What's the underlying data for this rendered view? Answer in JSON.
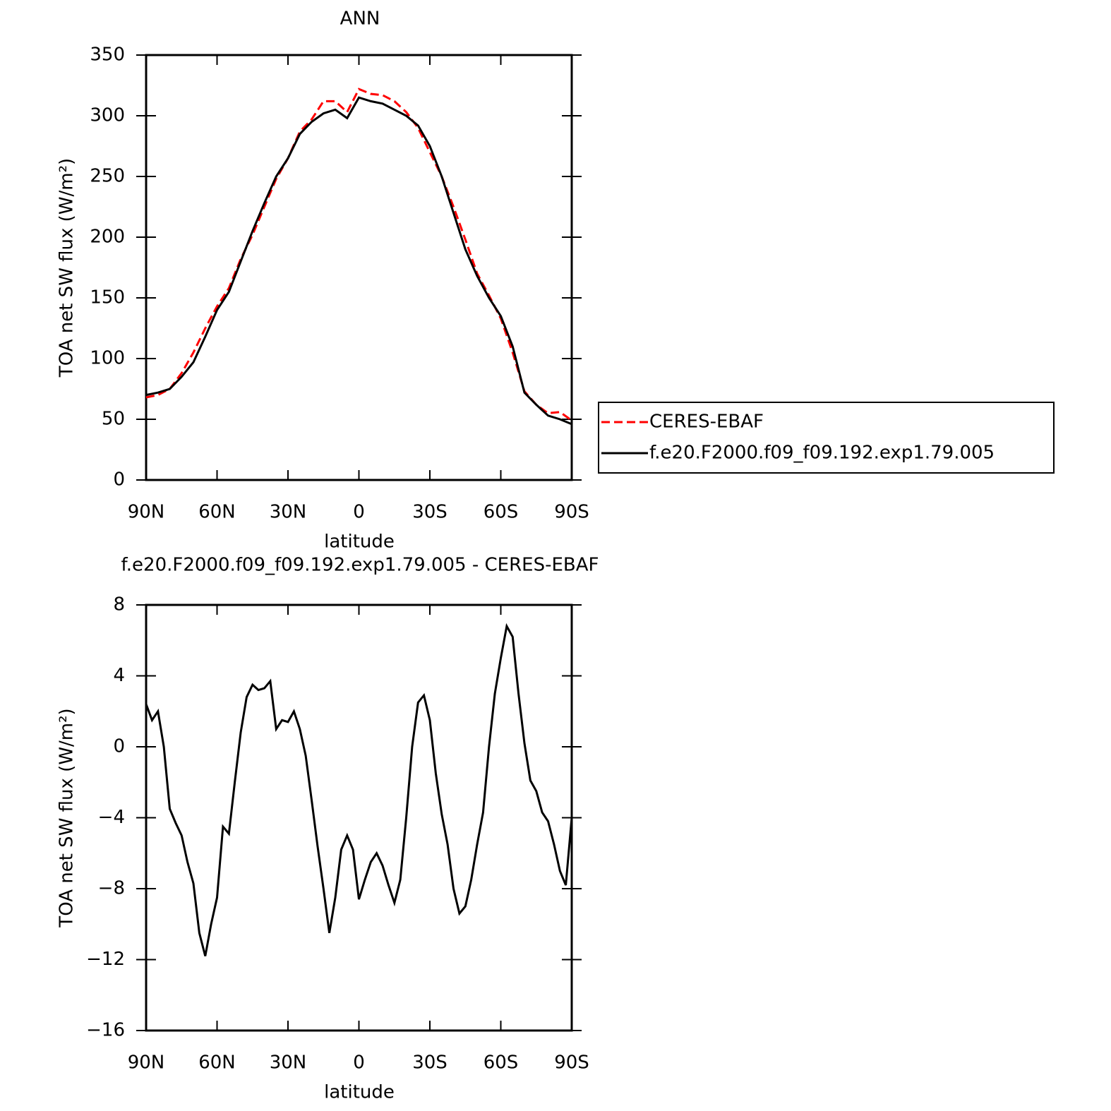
{
  "chart_data": [
    {
      "type": "line",
      "title": "ANN",
      "xlabel": "latitude",
      "ylabel": "TOA net SW flux (W/m²)",
      "x": [
        90,
        85,
        80,
        75,
        70,
        65,
        60,
        55,
        50,
        45,
        40,
        35,
        30,
        25,
        20,
        15,
        10,
        5,
        0,
        -5,
        -10,
        -15,
        -20,
        -25,
        -30,
        -35,
        -40,
        -45,
        -50,
        -55,
        -60,
        -65,
        -70,
        -75,
        -80,
        -85,
        -90
      ],
      "series": [
        {
          "name": "CERES-EBAF",
          "color": "#ff0000",
          "dashed": true,
          "values": [
            68,
            70,
            75,
            88,
            105,
            125,
            143,
            158,
            182,
            202,
            225,
            248,
            265,
            287,
            297,
            312,
            312,
            303,
            322,
            318,
            317,
            312,
            303,
            290,
            270,
            250,
            225,
            198,
            170,
            152,
            133,
            105,
            73,
            62,
            55,
            56,
            49
          ]
        },
        {
          "name": "f.e20.F2000.f09_f09.192.exp1.79.005",
          "color": "#000000",
          "dashed": false,
          "values": [
            70,
            72,
            75,
            85,
            97,
            118,
            140,
            155,
            180,
            205,
            228,
            250,
            265,
            285,
            295,
            302,
            305,
            298,
            315,
            312,
            310,
            305,
            300,
            292,
            275,
            250,
            220,
            190,
            168,
            150,
            135,
            110,
            72,
            62,
            53,
            50,
            46
          ]
        }
      ],
      "xlim": [
        90,
        -90
      ],
      "xticks": [
        {
          "value": 90,
          "label": "90N"
        },
        {
          "value": 60,
          "label": "60N"
        },
        {
          "value": 30,
          "label": "30N"
        },
        0,
        {
          "value": -30,
          "label": "30S"
        },
        {
          "value": -60,
          "label": "60S"
        },
        {
          "value": -90,
          "label": "90S"
        }
      ],
      "ylim": [
        0,
        350
      ],
      "yticks": [
        0,
        50,
        100,
        150,
        200,
        250,
        300,
        350
      ],
      "legend": "right"
    },
    {
      "type": "line",
      "title": "f.e20.F2000.f09_f09.192.exp1.79.005 - CERES-EBAF",
      "xlabel": "latitude",
      "ylabel": "TOA net SW flux (W/m²)",
      "x": [
        90,
        87.5,
        85,
        82.5,
        80,
        77.5,
        75,
        72.5,
        70,
        67.5,
        65,
        62.5,
        60,
        57.5,
        55,
        52.5,
        50,
        47.5,
        45,
        42.5,
        40,
        37.5,
        35,
        32.5,
        30,
        27.5,
        25,
        22.5,
        20,
        17.5,
        15,
        12.5,
        10,
        7.5,
        5,
        2.5,
        0,
        -2.5,
        -5,
        -7.5,
        -10,
        -12.5,
        -15,
        -17.5,
        -20,
        -22.5,
        -25,
        -27.5,
        -30,
        -32.5,
        -35,
        -37.5,
        -40,
        -42.5,
        -45,
        -47.5,
        -50,
        -52.5,
        -55,
        -57.5,
        -60,
        -62.5,
        -65,
        -67.5,
        -70,
        -72.5,
        -75,
        -77.5,
        -80,
        -82.5,
        -85,
        -87.5,
        -90
      ],
      "series": [
        {
          "name": "f.e20.F2000.f09_f09.192.exp1.79.005 - CERES-EBAF",
          "color": "#000000",
          "dashed": false,
          "values": [
            2.4,
            1.5,
            2.0,
            0,
            -3.5,
            -4.3,
            -5.0,
            -6.5,
            -7.7,
            -10.5,
            -11.8,
            -10,
            -8.5,
            -4.5,
            -4.9,
            -2,
            0.8,
            2.8,
            3.5,
            3.2,
            3.3,
            3.7,
            1.0,
            1.5,
            1.4,
            2.0,
            1.0,
            -0.5,
            -3,
            -5.6,
            -8,
            -10.5,
            -8.5,
            -5.8,
            -5.0,
            -5.8,
            -8.6,
            -7.5,
            -6.5,
            -6.0,
            -6.7,
            -7.8,
            -8.8,
            -7.5,
            -4,
            0,
            2.5,
            2.9,
            1.5,
            -1.5,
            -3.8,
            -5.5,
            -8,
            -9.4,
            -9.0,
            -7.5,
            -5.5,
            -3.7,
            0,
            3,
            5,
            6.8,
            6.2,
            3,
            0.2,
            -1.9,
            -2.5,
            -3.7,
            -4.2,
            -5.5,
            -7,
            -7.8,
            -4
          ]
        }
      ],
      "xlim": [
        90,
        -90
      ],
      "xticks": [
        {
          "value": 90,
          "label": "90N"
        },
        {
          "value": 60,
          "label": "60N"
        },
        {
          "value": 30,
          "label": "30N"
        },
        0,
        {
          "value": -30,
          "label": "30S"
        },
        {
          "value": -60,
          "label": "60S"
        },
        {
          "value": -90,
          "label": "90S"
        }
      ],
      "ylim": [
        -16,
        8
      ],
      "yticks": [
        {
          "value": -16,
          "label": "−16"
        },
        {
          "value": -12,
          "label": "−12"
        },
        {
          "value": -8,
          "label": "−8"
        },
        {
          "value": -4,
          "label": "−4"
        },
        0,
        4,
        8
      ]
    }
  ]
}
